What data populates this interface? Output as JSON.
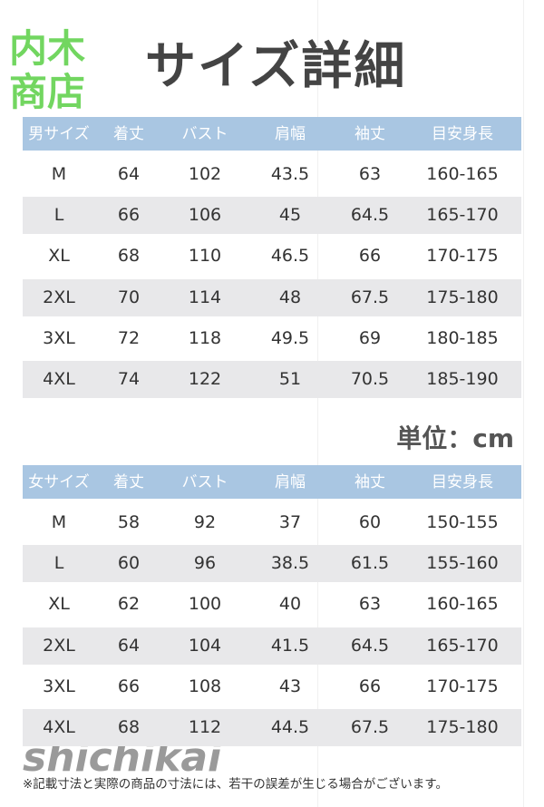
{
  "logo": {
    "lines": [
      "内木",
      "商店"
    ]
  },
  "title": "サイズ詳細",
  "men_table": {
    "header": [
      "男サイズ",
      "着丈",
      "バスト",
      "肩幅",
      "袖丈",
      "目安身長"
    ],
    "rows": [
      [
        "M",
        64,
        102,
        43.5,
        63,
        "160-165"
      ],
      [
        "L",
        66,
        106,
        45,
        64.5,
        "165-170"
      ],
      [
        "XL",
        68,
        110,
        46.5,
        66,
        "170-175"
      ],
      [
        "2XL",
        70,
        114,
        48,
        67.5,
        "175-180"
      ],
      [
        "3XL",
        72,
        118,
        49.5,
        69,
        "180-185"
      ],
      [
        "4XL",
        74,
        122,
        51,
        70.5,
        "185-190"
      ]
    ]
  },
  "unit": "単位：cm",
  "women_table": {
    "header": [
      "女サイズ",
      "着丈",
      "バスト",
      "肩幅",
      "袖丈",
      "目安身長"
    ],
    "rows": [
      [
        "M",
        58,
        92,
        37,
        60,
        "150-155"
      ],
      [
        "L",
        60,
        96,
        38.5,
        61.5,
        "155-160"
      ],
      [
        "XL",
        62,
        100,
        40,
        63,
        "160-165"
      ],
      [
        "2XL",
        64,
        104,
        41.5,
        64.5,
        "165-170"
      ],
      [
        "3XL",
        66,
        108,
        43,
        66,
        "170-175"
      ],
      [
        "4XL",
        68,
        112,
        44.5,
        67.5,
        "175-180"
      ]
    ]
  },
  "watermark": "shichikai",
  "footnote": "※記載寸法と実際の商品の寸法には、若干の誤差が生じる場合がございます。"
}
